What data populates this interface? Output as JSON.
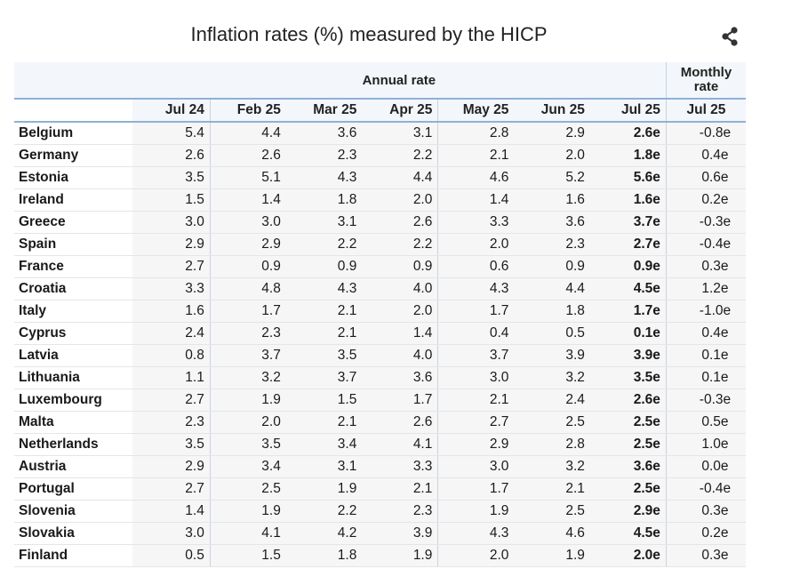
{
  "chart_data": {
    "type": "table",
    "title": "Inflation rates (%) measured by the HICP",
    "group_headers": {
      "annual": "Annual rate",
      "monthly": "Monthly rate"
    },
    "columns": [
      "Jul 24",
      "Feb 25",
      "Mar 25",
      "Apr 25",
      "May 25",
      "Jun 25",
      "Jul 25",
      "Jul 25"
    ],
    "rows": [
      {
        "country": "Belgium",
        "values": [
          "5.4",
          "4.4",
          "3.6",
          "3.1",
          "2.8",
          "2.9",
          "2.6e",
          "-0.8e"
        ]
      },
      {
        "country": "Germany",
        "values": [
          "2.6",
          "2.6",
          "2.3",
          "2.2",
          "2.1",
          "2.0",
          "1.8e",
          "0.4e"
        ]
      },
      {
        "country": "Estonia",
        "values": [
          "3.5",
          "5.1",
          "4.3",
          "4.4",
          "4.6",
          "5.2",
          "5.6e",
          "0.6e"
        ]
      },
      {
        "country": "Ireland",
        "values": [
          "1.5",
          "1.4",
          "1.8",
          "2.0",
          "1.4",
          "1.6",
          "1.6e",
          "0.2e"
        ]
      },
      {
        "country": "Greece",
        "values": [
          "3.0",
          "3.0",
          "3.1",
          "2.6",
          "3.3",
          "3.6",
          "3.7e",
          "-0.3e"
        ]
      },
      {
        "country": "Spain",
        "values": [
          "2.9",
          "2.9",
          "2.2",
          "2.2",
          "2.0",
          "2.3",
          "2.7e",
          "-0.4e"
        ]
      },
      {
        "country": "France",
        "values": [
          "2.7",
          "0.9",
          "0.9",
          "0.9",
          "0.6",
          "0.9",
          "0.9e",
          "0.3e"
        ]
      },
      {
        "country": "Croatia",
        "values": [
          "3.3",
          "4.8",
          "4.3",
          "4.0",
          "4.3",
          "4.4",
          "4.5e",
          "1.2e"
        ]
      },
      {
        "country": "Italy",
        "values": [
          "1.6",
          "1.7",
          "2.1",
          "2.0",
          "1.7",
          "1.8",
          "1.7e",
          "-1.0e"
        ]
      },
      {
        "country": "Cyprus",
        "values": [
          "2.4",
          "2.3",
          "2.1",
          "1.4",
          "0.4",
          "0.5",
          "0.1e",
          "0.4e"
        ]
      },
      {
        "country": "Latvia",
        "values": [
          "0.8",
          "3.7",
          "3.5",
          "4.0",
          "3.7",
          "3.9",
          "3.9e",
          "0.1e"
        ]
      },
      {
        "country": "Lithuania",
        "values": [
          "1.1",
          "3.2",
          "3.7",
          "3.6",
          "3.0",
          "3.2",
          "3.5e",
          "0.1e"
        ]
      },
      {
        "country": "Luxembourg",
        "values": [
          "2.7",
          "1.9",
          "1.5",
          "1.7",
          "2.1",
          "2.4",
          "2.6e",
          "-0.3e"
        ]
      },
      {
        "country": "Malta",
        "values": [
          "2.3",
          "2.0",
          "2.1",
          "2.6",
          "2.7",
          "2.5",
          "2.5e",
          "0.5e"
        ]
      },
      {
        "country": "Netherlands",
        "values": [
          "3.5",
          "3.5",
          "3.4",
          "4.1",
          "2.9",
          "2.8",
          "2.5e",
          "1.0e"
        ]
      },
      {
        "country": "Austria",
        "values": [
          "2.9",
          "3.4",
          "3.1",
          "3.3",
          "3.0",
          "3.2",
          "3.6e",
          "0.0e"
        ]
      },
      {
        "country": "Portugal",
        "values": [
          "2.7",
          "2.5",
          "1.9",
          "2.1",
          "1.7",
          "2.1",
          "2.5e",
          "-0.4e"
        ]
      },
      {
        "country": "Slovenia",
        "values": [
          "1.4",
          "1.9",
          "2.2",
          "2.3",
          "1.9",
          "2.5",
          "2.9e",
          "0.3e"
        ]
      },
      {
        "country": "Slovakia",
        "values": [
          "3.0",
          "4.1",
          "4.2",
          "3.9",
          "4.3",
          "4.6",
          "4.5e",
          "0.2e"
        ]
      },
      {
        "country": "Finland",
        "values": [
          "0.5",
          "1.5",
          "1.8",
          "1.9",
          "2.0",
          "1.9",
          "2.0e",
          "0.3e"
        ]
      }
    ]
  },
  "colors": {
    "header_bg": "#f3f6fa",
    "header_rule": "#8fb0d8",
    "cell_bg": "#f6f6f6",
    "icon": "#333333"
  },
  "icons": {
    "share": "share-icon"
  }
}
